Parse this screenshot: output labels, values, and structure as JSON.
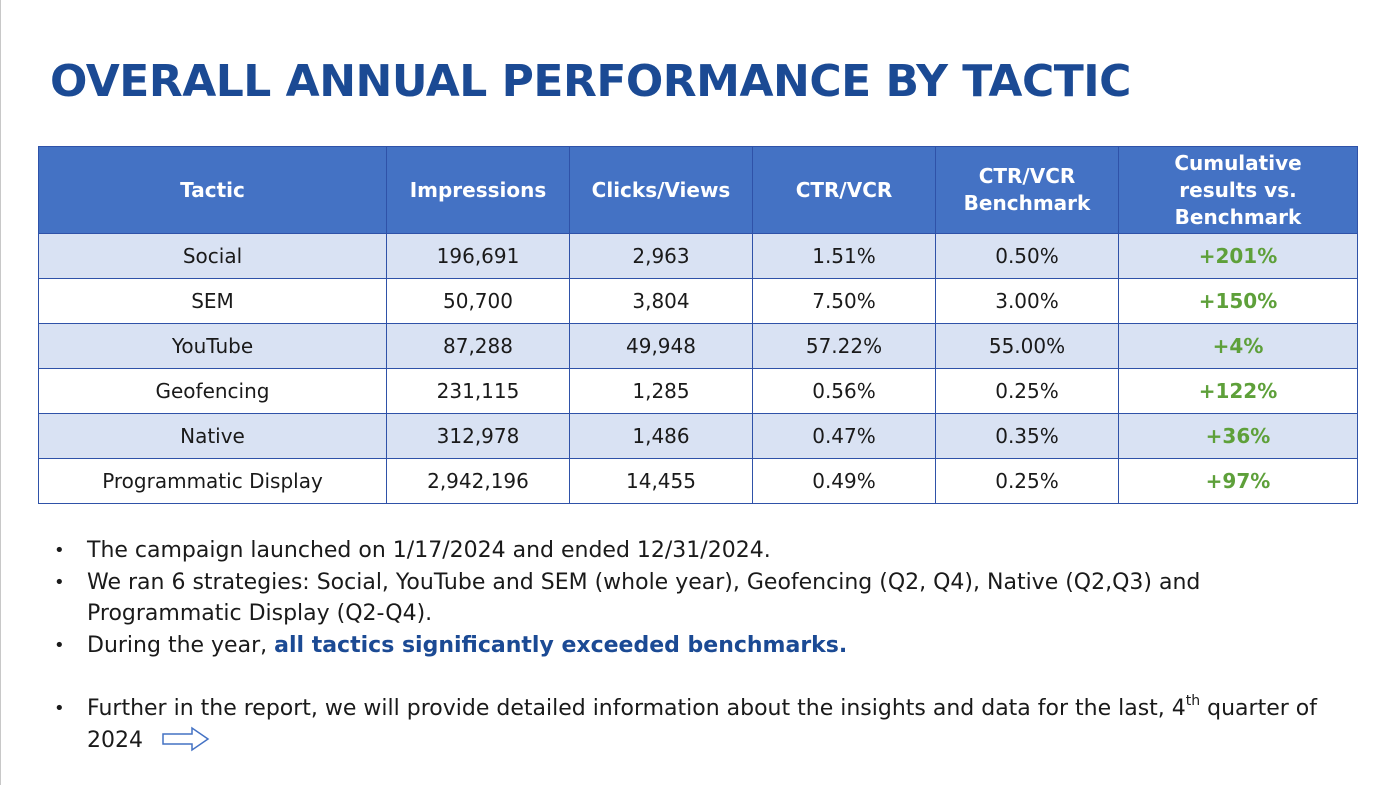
{
  "title": "OVERALL ANNUAL PERFORMANCE BY TACTIC",
  "colors": {
    "title": "#1b4a94",
    "header_bg": "#4472c4",
    "row_alt_bg": "#d9e2f3",
    "border": "#2f52a8",
    "result_green": "#5ea03a",
    "emphasis_blue": "#1b4a94"
  },
  "table": {
    "headers": {
      "tactic": "Tactic",
      "impressions": "Impressions",
      "clicks": "Clicks/Views",
      "ctr": "CTR/VCR",
      "benchmark": "CTR/VCR Benchmark",
      "cumulative": "Cumulative results vs. Benchmark"
    },
    "rows": [
      {
        "tactic": "Social",
        "impressions": "196,691",
        "clicks": "2,963",
        "ctr": "1.51%",
        "benchmark": "0.50%",
        "cumulative": "+201%"
      },
      {
        "tactic": "SEM",
        "impressions": "50,700",
        "clicks": "3,804",
        "ctr": "7.50%",
        "benchmark": "3.00%",
        "cumulative": "+150%"
      },
      {
        "tactic": "YouTube",
        "impressions": "87,288",
        "clicks": "49,948",
        "ctr": "57.22%",
        "benchmark": "55.00%",
        "cumulative": "+4%"
      },
      {
        "tactic": "Geofencing",
        "impressions": "231,115",
        "clicks": "1,285",
        "ctr": "0.56%",
        "benchmark": "0.25%",
        "cumulative": "+122%"
      },
      {
        "tactic": "Native",
        "impressions": "312,978",
        "clicks": "1,486",
        "ctr": "0.47%",
        "benchmark": "0.35%",
        "cumulative": "+36%"
      },
      {
        "tactic": "Programmatic Display",
        "impressions": "2,942,196",
        "clicks": "14,455",
        "ctr": "0.49%",
        "benchmark": "0.25%",
        "cumulative": "+97%"
      }
    ]
  },
  "bullets": {
    "marker": "•",
    "b1": "The campaign launched on 1/17/2024 and ended 12/31/2024.",
    "b2": "We ran 6 strategies: Social, YouTube and SEM (whole year), Geofencing (Q2, Q4), Native (Q2,Q3) and Programmatic Display (Q2-Q4).",
    "b3_prefix": "During the year, ",
    "b3_emphasis": "all tactics significantly exceeded benchmarks.",
    "b4_text": "Further in the report, we will provide detailed information about the insights and data for the last, 4",
    "b4_sup": "th",
    "b4_tail": " quarter of 2024",
    "arrow_icon": "right-arrow-icon"
  }
}
